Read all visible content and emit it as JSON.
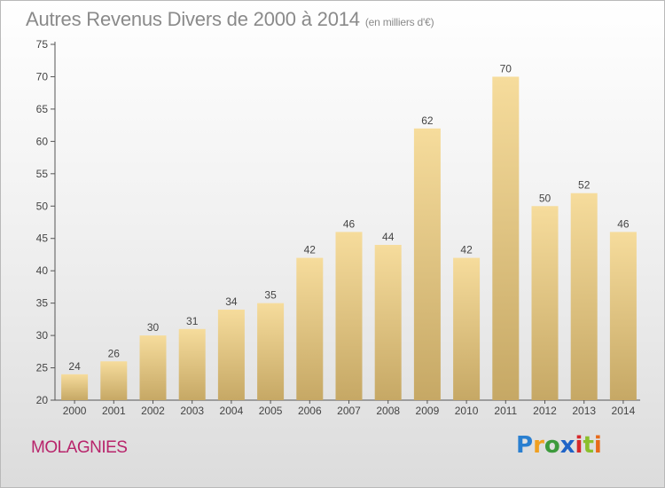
{
  "title": "Autres Revenus Divers de 2000 à 2014",
  "subtitle": "(en milliers d'€)",
  "commune": "MOLAGNIES",
  "logo": {
    "text": "Proxiti",
    "letters": [
      "P",
      "r",
      "o",
      "x",
      "i",
      "t",
      "i"
    ]
  },
  "colors": {
    "bar_light": "#f6dc9c",
    "bar_dark": "#c6a865",
    "title": "#8a8a8a",
    "commune": "#b8246b"
  },
  "chart_data": {
    "type": "bar",
    "title": "Autres Revenus Divers de 2000 à 2014",
    "subtitle": "(en milliers d'€)",
    "categories": [
      "2000",
      "2001",
      "2002",
      "2003",
      "2004",
      "2005",
      "2006",
      "2007",
      "2008",
      "2009",
      "2010",
      "2011",
      "2012",
      "2013",
      "2014"
    ],
    "values": [
      24,
      26,
      30,
      31,
      34,
      35,
      42,
      46,
      44,
      62,
      42,
      70,
      50,
      52,
      46
    ],
    "ylim": [
      20,
      75
    ],
    "yticks": [
      20,
      25,
      30,
      35,
      40,
      45,
      50,
      55,
      60,
      65,
      70,
      75
    ],
    "grid": false,
    "data_labels": true,
    "xlabel": "",
    "ylabel": ""
  }
}
